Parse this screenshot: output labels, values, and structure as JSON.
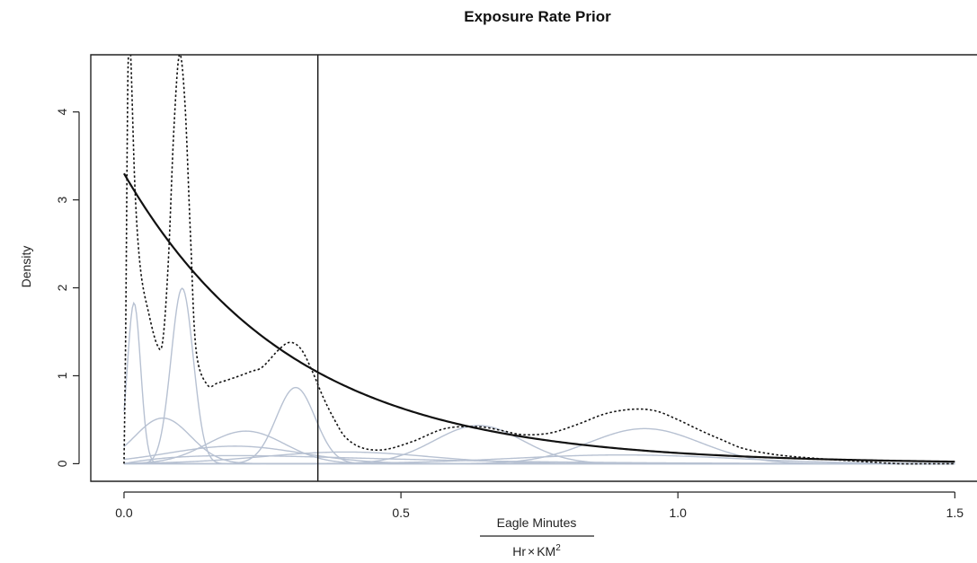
{
  "chart_data": {
    "type": "line",
    "title": "Exposure Rate Prior",
    "xlabel": {
      "numerator": "Eagle Minutes",
      "denominator_base": "Hr",
      "denominator_times": "×",
      "denominator_unit": "KM",
      "denominator_exponent": "2"
    },
    "ylabel": "Density",
    "xlim": [
      -0.06,
      1.54
    ],
    "ylim": [
      -0.2,
      4.65
    ],
    "x_ticks": [
      0.0,
      0.5,
      1.0,
      1.5
    ],
    "x_tick_labels": [
      "0.0",
      "0.5",
      "1.0",
      "1.5"
    ],
    "y_ticks": [
      0,
      1,
      2,
      3,
      4
    ],
    "y_tick_labels": [
      "0",
      "1",
      "2",
      "3",
      "4"
    ],
    "grid": false,
    "vertical_line_x": 0.35,
    "series": [
      {
        "style": "solid-black",
        "distribution": "exponential",
        "rate": 3.3,
        "x_range": [
          0,
          1.5
        ]
      },
      {
        "style": "dotted-black",
        "x": [
          0.0,
          0.003,
          0.006,
          0.008,
          0.012,
          0.02,
          0.03,
          0.045,
          0.06,
          0.07,
          0.08,
          0.09,
          0.1,
          0.11,
          0.12,
          0.13,
          0.15,
          0.17,
          0.2,
          0.23,
          0.25,
          0.28,
          0.3,
          0.32,
          0.34,
          0.36,
          0.38,
          0.4,
          0.43,
          0.47,
          0.52,
          0.58,
          0.64,
          0.68,
          0.72,
          0.77,
          0.82,
          0.87,
          0.92,
          0.96,
          1.0,
          1.04,
          1.08,
          1.12,
          1.18,
          1.25,
          1.32,
          1.4,
          1.45,
          1.5
        ],
        "y": [
          0.0,
          1.5,
          3.8,
          4.65,
          4.65,
          3.1,
          2.2,
          1.7,
          1.35,
          1.4,
          2.3,
          3.8,
          4.65,
          4.1,
          2.6,
          1.3,
          0.9,
          0.92,
          0.98,
          1.05,
          1.1,
          1.3,
          1.38,
          1.3,
          1.05,
          0.75,
          0.5,
          0.3,
          0.18,
          0.16,
          0.25,
          0.4,
          0.42,
          0.38,
          0.33,
          0.35,
          0.45,
          0.57,
          0.62,
          0.6,
          0.5,
          0.38,
          0.27,
          0.17,
          0.1,
          0.06,
          0.03,
          0.0,
          0.0,
          0.0
        ]
      },
      {
        "style": "components-gray",
        "components": [
          {
            "kind": "normal",
            "mean": 0.018,
            "sd": 0.012,
            "weight": 0.055
          },
          {
            "kind": "normal",
            "mean": 0.105,
            "sd": 0.02,
            "weight": 0.1
          },
          {
            "kind": "normal",
            "mean": 0.31,
            "sd": 0.035,
            "weight": 0.076
          },
          {
            "kind": "normal",
            "mean": 0.22,
            "sd": 0.07,
            "weight": 0.065
          },
          {
            "kind": "normal",
            "mean": 0.07,
            "sd": 0.05,
            "weight": 0.065
          },
          {
            "kind": "normal",
            "mean": 0.64,
            "sd": 0.08,
            "weight": 0.087
          },
          {
            "kind": "normal",
            "mean": 0.94,
            "sd": 0.1,
            "weight": 0.1
          },
          {
            "kind": "normal",
            "mean": 0.2,
            "sd": 0.12,
            "weight": 0.06
          },
          {
            "kind": "normal",
            "mean": 0.4,
            "sd": 0.15,
            "weight": 0.05
          },
          {
            "kind": "normal",
            "mean": 0.9,
            "sd": 0.2,
            "weight": 0.05
          },
          {
            "kind": "gamma",
            "shape": 2.0,
            "scale": 0.2,
            "weight": 0.05
          }
        ]
      }
    ]
  }
}
